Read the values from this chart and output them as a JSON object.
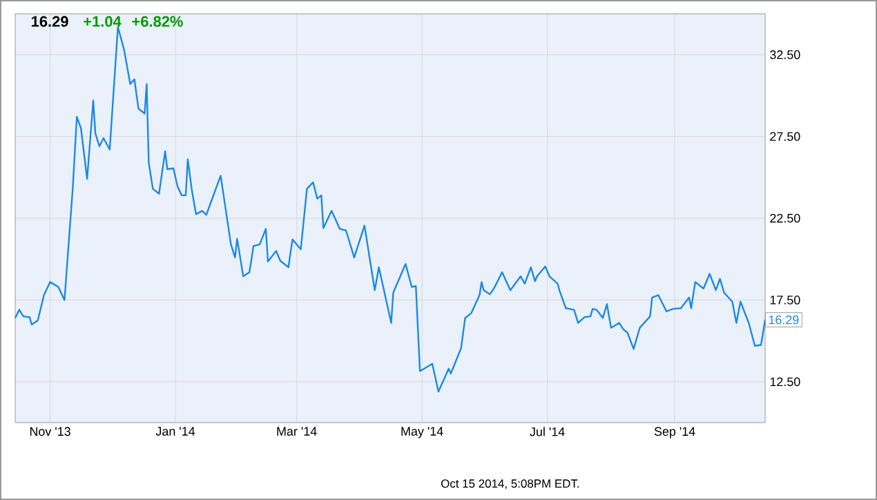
{
  "chart_data": {
    "type": "line",
    "title": "16.29",
    "annotations": [
      "+1.04",
      "+6.82%",
      "Oct 15 2014, 5:08PM EDT.",
      {
        "text": "16.29",
        "x": "2014-10-15",
        "y": 16.29
      }
    ],
    "x": [
      "2013-10-15",
      "2013-10-17",
      "2013-10-19",
      "2013-10-22",
      "2013-10-23",
      "2013-10-26",
      "2013-10-29",
      "2013-11-01",
      "2013-11-05",
      "2013-11-08",
      "2013-11-12",
      "2013-11-14",
      "2013-11-16",
      "2013-11-19",
      "2013-11-22",
      "2013-11-23",
      "2013-11-25",
      "2013-11-27",
      "2013-11-30",
      "2013-12-04",
      "2013-12-07",
      "2013-12-10",
      "2013-12-12",
      "2013-12-14",
      "2013-12-17",
      "2013-12-18",
      "2013-12-19",
      "2013-12-21",
      "2013-12-24",
      "2013-12-27",
      "2013-12-28",
      "2013-12-31",
      "2014-01-02",
      "2014-01-04",
      "2014-01-06",
      "2014-01-07",
      "2014-01-09",
      "2014-01-11",
      "2014-01-14",
      "2014-01-16",
      "2014-01-23",
      "2014-01-28",
      "2014-01-30",
      "2014-01-31",
      "2014-02-03",
      "2014-02-06",
      "2014-02-08",
      "2014-02-11",
      "2014-02-14",
      "2014-02-15",
      "2014-02-19",
      "2014-02-21",
      "2014-02-25",
      "2014-02-26",
      "2014-02-27",
      "2014-03-03",
      "2014-03-06",
      "2014-03-09",
      "2014-03-11",
      "2014-03-13",
      "2014-03-14",
      "2014-03-18",
      "2014-03-22",
      "2014-03-25",
      "2014-03-29",
      "2014-04-03",
      "2014-04-08",
      "2014-04-10",
      "2014-04-16",
      "2014-04-17",
      "2014-04-23",
      "2014-04-26",
      "2014-04-28",
      "2014-04-30",
      "2014-05-06",
      "2014-05-09",
      "2014-05-14",
      "2014-05-15",
      "2014-05-20",
      "2014-05-22",
      "2014-05-25",
      "2014-05-29",
      "2014-05-30",
      "2014-05-31",
      "2014-06-03",
      "2014-06-05",
      "2014-06-09",
      "2014-06-13",
      "2014-06-18",
      "2014-06-20",
      "2014-06-23",
      "2014-06-25",
      "2014-06-26",
      "2014-06-30",
      "2014-07-02",
      "2014-07-06",
      "2014-07-07",
      "2014-07-10",
      "2014-07-14",
      "2014-07-16",
      "2014-07-19",
      "2014-07-22",
      "2014-07-23",
      "2014-07-25",
      "2014-07-28",
      "2014-07-30",
      "2014-08-01",
      "2014-08-05",
      "2014-08-07",
      "2014-08-09",
      "2014-08-12",
      "2014-08-15",
      "2014-08-20",
      "2014-08-21",
      "2014-08-24",
      "2014-08-28",
      "2014-08-31",
      "2014-09-04",
      "2014-09-08",
      "2014-09-09",
      "2014-09-11",
      "2014-09-15",
      "2014-09-18",
      "2014-09-21",
      "2014-09-23",
      "2014-09-25",
      "2014-09-29",
      "2014-10-01",
      "2014-10-03",
      "2014-10-07",
      "2014-10-10",
      "2014-10-13",
      "2014-10-15"
    ],
    "series": [
      {
        "color": "#1e88e5",
        "values": [
          16.4,
          16.9,
          16.5,
          16.45,
          16.0,
          16.25,
          17.8,
          18.6,
          18.3,
          17.5,
          24.3,
          28.7,
          28.0,
          24.9,
          29.7,
          27.7,
          26.9,
          27.4,
          26.7,
          34.2,
          32.8,
          30.7,
          31.0,
          29.2,
          28.9,
          30.7,
          25.9,
          24.3,
          24.0,
          26.6,
          25.5,
          25.55,
          24.45,
          23.9,
          23.9,
          26.1,
          24.2,
          22.75,
          22.95,
          22.7,
          25.1,
          20.9,
          20.1,
          21.25,
          18.95,
          19.2,
          20.8,
          20.9,
          21.85,
          19.85,
          20.5,
          19.9,
          19.5,
          20.4,
          21.2,
          20.6,
          24.3,
          24.7,
          23.7,
          23.9,
          21.9,
          22.95,
          21.85,
          21.75,
          20.1,
          22.05,
          18.1,
          19.5,
          16.1,
          17.95,
          19.7,
          18.3,
          18.35,
          13.15,
          13.6,
          11.9,
          13.3,
          13.0,
          14.55,
          16.4,
          16.7,
          17.8,
          18.6,
          18.1,
          17.85,
          18.2,
          19.2,
          18.1,
          18.95,
          18.5,
          19.5,
          18.65,
          18.95,
          19.55,
          18.95,
          18.5,
          18.05,
          17.0,
          16.9,
          16.1,
          16.45,
          16.5,
          16.95,
          16.9,
          16.4,
          17.25,
          15.8,
          16.1,
          15.7,
          15.5,
          14.5,
          15.8,
          16.5,
          17.65,
          17.8,
          16.8,
          16.95,
          17.0,
          17.65,
          17.0,
          18.6,
          18.2,
          19.1,
          18.1,
          18.8,
          17.95,
          17.4,
          16.1,
          17.4,
          16.1,
          14.7,
          14.75,
          16.29
        ]
      }
    ],
    "xlim": [
      "2013-10-15",
      "2014-10-15"
    ],
    "xticks": [
      {
        "value": "2013-11-01",
        "label": "Nov '13"
      },
      {
        "value": "2014-01-01",
        "label": "Jan '14"
      },
      {
        "value": "2014-03-01",
        "label": "Mar '14"
      },
      {
        "value": "2014-05-01",
        "label": "May '14"
      },
      {
        "value": "2014-07-01",
        "label": "Jul '14"
      },
      {
        "value": "2014-09-01",
        "label": "Sep '14"
      }
    ],
    "ylim": [
      10,
      35
    ],
    "yticks": [
      {
        "value": 12.5,
        "label": "12.50"
      },
      {
        "value": 17.5,
        "label": "17.50"
      },
      {
        "value": 22.5,
        "label": "22.50"
      },
      {
        "value": 27.5,
        "label": "27.50"
      },
      {
        "value": 32.5,
        "label": "32.50"
      }
    ],
    "grid": true,
    "marker": "none",
    "line_style": "solid"
  }
}
